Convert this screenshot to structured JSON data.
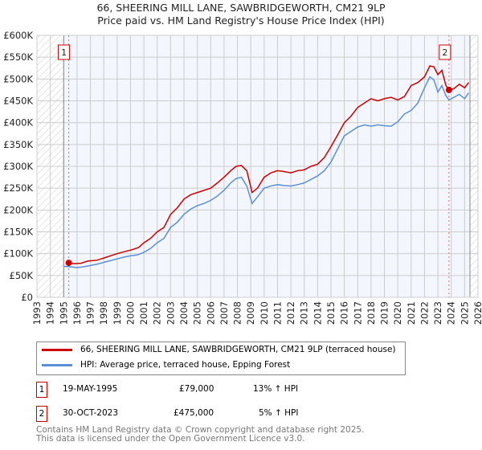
{
  "chart_data": {
    "type": "line",
    "title": "66, SHEERING MILL LANE, SAWBRIDGEWORTH, CM21 9LP",
    "subtitle": "Price paid vs. HM Land Registry's House Price Index (HPI)",
    "xlim": [
      1993,
      2026
    ],
    "ylim": [
      0,
      600000
    ],
    "x_ticks": [
      "1993",
      "1994",
      "1995",
      "1996",
      "1997",
      "1998",
      "1999",
      "2000",
      "2001",
      "2002",
      "2003",
      "2004",
      "2005",
      "2006",
      "2007",
      "2008",
      "2009",
      "2010",
      "2011",
      "2012",
      "2013",
      "2014",
      "2015",
      "2016",
      "2017",
      "2018",
      "2019",
      "2020",
      "2021",
      "2022",
      "2023",
      "2024",
      "2025",
      "2026"
    ],
    "y_ticks": [
      {
        "v": 0,
        "l": "£0"
      },
      {
        "v": 50000,
        "l": "£50K"
      },
      {
        "v": 100000,
        "l": "£100K"
      },
      {
        "v": 150000,
        "l": "£150K"
      },
      {
        "v": 200000,
        "l": "£200K"
      },
      {
        "v": 250000,
        "l": "£250K"
      },
      {
        "v": 300000,
        "l": "£300K"
      },
      {
        "v": 350000,
        "l": "£350K"
      },
      {
        "v": 400000,
        "l": "£400K"
      },
      {
        "v": 450000,
        "l": "£450K"
      },
      {
        "v": 500000,
        "l": "£500K"
      },
      {
        "v": 550000,
        "l": "£550K"
      },
      {
        "v": 600000,
        "l": "£600K"
      }
    ],
    "grid": true,
    "hatched_ranges": [
      [
        1993,
        1995
      ],
      [
        2025.4,
        2026
      ]
    ],
    "series": [
      {
        "name": "66, SHEERING MILL LANE, SAWBRIDGEWORTH, CM21 9LP (terraced house)",
        "color": "#cc0000",
        "x": [
          1995.38,
          1995.8,
          1996.3,
          1996.8,
          1997.5,
          1998,
          1998.6,
          1999,
          1999.6,
          2000,
          2000.6,
          2001,
          2001.5,
          2002,
          2002.5,
          2003,
          2003.5,
          2004,
          2004.5,
          2005,
          2005.5,
          2006,
          2006.5,
          2007,
          2007.5,
          2007.9,
          2008.3,
          2008.7,
          2009.1,
          2009.5,
          2010,
          2010.5,
          2011,
          2011.5,
          2012,
          2012.5,
          2013,
          2013.5,
          2014,
          2014.5,
          2015,
          2015.5,
          2016,
          2016.5,
          2017,
          2017.5,
          2018,
          2018.5,
          2019,
          2019.5,
          2020,
          2020.5,
          2021,
          2021.5,
          2022,
          2022.4,
          2022.7,
          2023,
          2023.3,
          2023.6,
          2023.83,
          2024.2,
          2024.6,
          2025,
          2025.3
        ],
        "y": [
          79000,
          77000,
          78000,
          83000,
          85000,
          90000,
          96000,
          100000,
          105000,
          108000,
          114000,
          125000,
          135000,
          150000,
          160000,
          190000,
          205000,
          225000,
          235000,
          240000,
          245000,
          250000,
          262000,
          275000,
          290000,
          300000,
          302000,
          290000,
          240000,
          250000,
          275000,
          285000,
          290000,
          288000,
          285000,
          290000,
          292000,
          300000,
          305000,
          320000,
          345000,
          372000,
          400000,
          415000,
          435000,
          445000,
          455000,
          450000,
          455000,
          458000,
          452000,
          460000,
          485000,
          492000,
          505000,
          530000,
          528000,
          510000,
          520000,
          485000,
          475000,
          478000,
          488000,
          480000,
          492000
        ]
      },
      {
        "name": "HPI: Average price, terraced house, Epping Forest",
        "color": "#5b8fd6",
        "x": [
          1995.0,
          1995.5,
          1996,
          1996.5,
          1997,
          1997.5,
          1998,
          1998.5,
          1999,
          1999.5,
          2000,
          2000.5,
          2001,
          2001.5,
          2002,
          2002.5,
          2003,
          2003.5,
          2004,
          2004.5,
          2005,
          2005.5,
          2006,
          2006.5,
          2007,
          2007.5,
          2007.9,
          2008.3,
          2008.7,
          2009.1,
          2009.5,
          2010,
          2010.5,
          2011,
          2011.5,
          2012,
          2012.5,
          2013,
          2013.5,
          2014,
          2014.5,
          2015,
          2015.5,
          2016,
          2016.5,
          2017,
          2017.5,
          2018,
          2018.5,
          2019,
          2019.5,
          2020,
          2020.5,
          2021,
          2021.5,
          2022,
          2022.4,
          2022.7,
          2023,
          2023.3,
          2023.6,
          2023.83,
          2024.2,
          2024.6,
          2025,
          2025.3
        ],
        "y": [
          71000,
          70000,
          68000,
          70000,
          73000,
          76000,
          80000,
          84000,
          88000,
          92000,
          95000,
          97000,
          103000,
          112000,
          125000,
          135000,
          160000,
          172000,
          190000,
          202000,
          210000,
          215000,
          222000,
          232000,
          245000,
          262000,
          272000,
          275000,
          255000,
          215000,
          230000,
          250000,
          255000,
          258000,
          256000,
          255000,
          258000,
          262000,
          270000,
          278000,
          290000,
          310000,
          340000,
          370000,
          380000,
          390000,
          395000,
          392000,
          395000,
          393000,
          392000,
          402000,
          420000,
          428000,
          445000,
          480000,
          505000,
          498000,
          470000,
          485000,
          462000,
          452000,
          458000,
          465000,
          455000,
          468000
        ]
      }
    ],
    "annotations": [
      {
        "label": "1",
        "x": 1995.38,
        "y": 79000
      },
      {
        "label": "2",
        "x": 2023.83,
        "y": 475000
      }
    ]
  },
  "legend": {
    "red": "66, SHEERING MILL LANE, SAWBRIDGEWORTH, CM21 9LP (terraced house)",
    "blue": "HPI: Average price, terraced house, Epping Forest"
  },
  "transactions": [
    {
      "num": "1",
      "date": "19-MAY-1995",
      "price": "£79,000",
      "hpi": "13% ↑ HPI"
    },
    {
      "num": "2",
      "date": "30-OCT-2023",
      "price": "£475,000",
      "hpi": "5% ↑ HPI"
    }
  ],
  "footer": {
    "line1": "Contains HM Land Registry data © Crown copyright and database right 2025.",
    "line2": "This data is licensed under the Open Government Licence v3.0."
  }
}
